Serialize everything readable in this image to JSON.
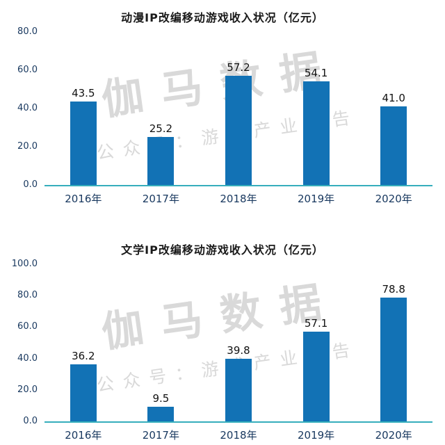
{
  "watermark": {
    "brand": "伽马数据",
    "subtitle": "公众号：游戏产业报告"
  },
  "colors": {
    "bar": "#1272b5",
    "axis_line": "#35aebc"
  },
  "chart_data": [
    {
      "type": "bar",
      "title": "动漫IP改编移动游戏收入状况（亿元）",
      "categories": [
        "2016年",
        "2017年",
        "2018年",
        "2019年",
        "2020年"
      ],
      "values": [
        43.5,
        25.2,
        57.2,
        54.1,
        41.0
      ],
      "ylim": [
        0,
        80
      ],
      "ytick_interval": 20,
      "ytick_labels": [
        "0.0",
        "20.0",
        "40.0",
        "60.0",
        "80.0"
      ],
      "grid": false,
      "legend": "none"
    },
    {
      "type": "bar",
      "title": "文学IP改编移动游戏收入状况（亿元）",
      "categories": [
        "2016年",
        "2017年",
        "2018年",
        "2019年",
        "2020年"
      ],
      "values": [
        36.2,
        9.5,
        39.8,
        57.1,
        78.8
      ],
      "ylim": [
        0,
        100
      ],
      "ytick_interval": 20,
      "ytick_labels": [
        "0.0",
        "20.0",
        "40.0",
        "60.0",
        "80.0",
        "100.0"
      ],
      "grid": false,
      "legend": "none"
    }
  ]
}
